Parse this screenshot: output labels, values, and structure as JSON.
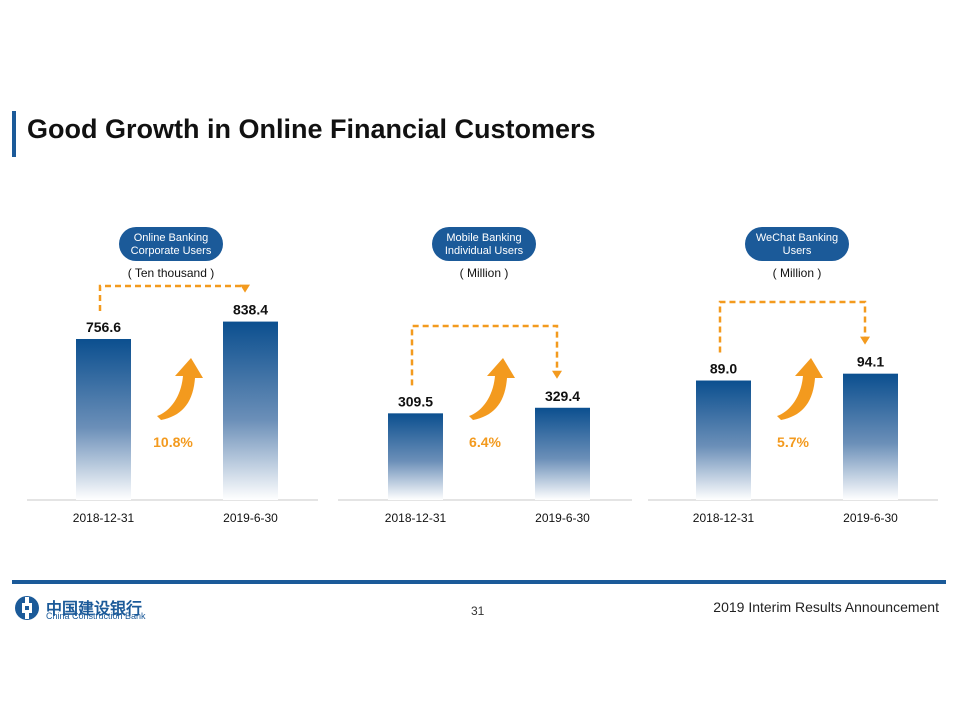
{
  "title": "Good Growth in Online Financial Customers",
  "footer": {
    "logo_cn": "中国建设银行",
    "logo_en": "China Construction Bank",
    "page_number": "31",
    "announcement": "2019 Interim Results Announcement"
  },
  "colors": {
    "bar_dark": "#0b4f8f",
    "bar_light": "#ffffff",
    "accent_orange": "#f39a1e",
    "pill": "#1b5a99",
    "brand_blue": "#1b5a99"
  },
  "chart_data": [
    {
      "type": "bar",
      "pill_label": [
        "Online Banking",
        "Corporate Users"
      ],
      "unit": "( Ten thousand )",
      "categories": [
        "2018-12-31",
        "2019-6-30"
      ],
      "values": [
        756.6,
        838.4
      ],
      "value_labels": [
        "756.6",
        "838.4"
      ],
      "growth": "10.8%"
    },
    {
      "type": "bar",
      "pill_label": [
        "Mobile Banking",
        "Individual Users"
      ],
      "unit": "( Million )",
      "categories": [
        "2018-12-31",
        "2019-6-30"
      ],
      "values": [
        309.5,
        329.4
      ],
      "value_labels": [
        "309.5",
        "329.4"
      ],
      "growth": "6.4%"
    },
    {
      "type": "bar",
      "pill_label": [
        "WeChat Banking",
        "Users"
      ],
      "unit": "( Million )",
      "categories": [
        "2018-12-31",
        "2019-6-30"
      ],
      "values": [
        89.0,
        94.1
      ],
      "value_labels": [
        "89.0",
        "94.1"
      ],
      "growth": "5.7%"
    }
  ]
}
